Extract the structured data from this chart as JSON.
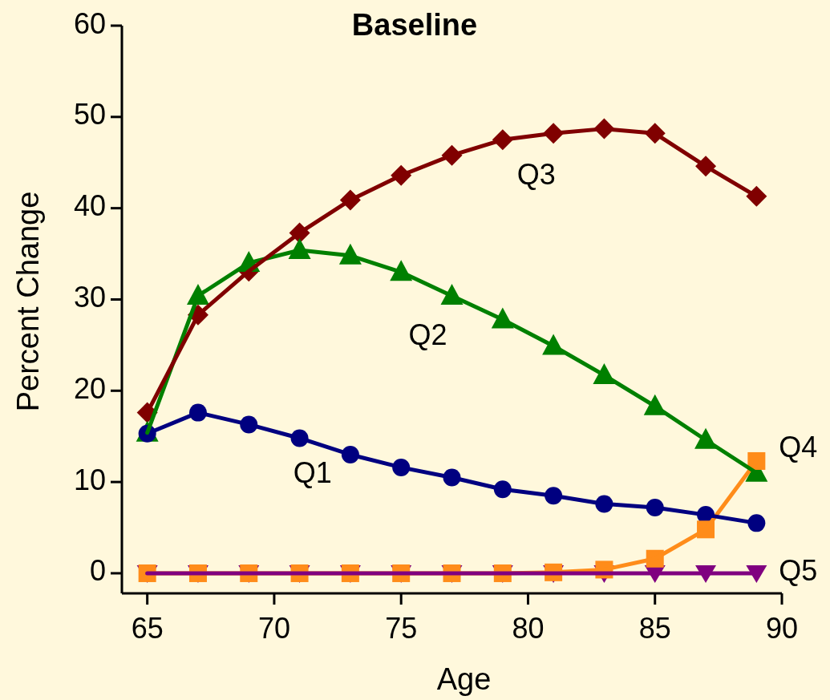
{
  "chart_data": {
    "type": "line",
    "title": "Baseline",
    "xlabel": "Age",
    "ylabel": "Percent Change",
    "x": [
      65,
      67,
      69,
      71,
      73,
      75,
      77,
      79,
      81,
      83,
      85,
      87,
      89
    ],
    "xlim": [
      64,
      90
    ],
    "xticks": [
      65,
      70,
      75,
      80,
      85,
      90
    ],
    "ylim": [
      -2.2,
      60
    ],
    "yticks": [
      0,
      10,
      20,
      30,
      40,
      50,
      60
    ],
    "grid": false,
    "legend": false,
    "series": [
      {
        "name": "Q3",
        "color": "#800000",
        "marker": "diamond",
        "values": [
          17.6,
          28.3,
          33.1,
          37.3,
          40.9,
          43.6,
          45.8,
          47.5,
          48.2,
          48.7,
          48.2,
          44.6,
          41.3
        ]
      },
      {
        "name": "Q2",
        "color": "#008000",
        "marker": "triangle",
        "values": [
          15.4,
          30.4,
          34.0,
          35.4,
          34.8,
          33.0,
          30.4,
          27.8,
          24.9,
          21.7,
          18.3,
          14.6,
          11.0
        ]
      },
      {
        "name": "Q1",
        "color": "#000080",
        "marker": "circle",
        "values": [
          15.3,
          17.6,
          16.3,
          14.8,
          13.0,
          11.6,
          10.5,
          9.2,
          8.5,
          7.6,
          7.2,
          6.4,
          5.5
        ]
      },
      {
        "name": "Q5",
        "color": "#800080",
        "marker": "triangle-down",
        "values": [
          0,
          0,
          0,
          0,
          0,
          0,
          0,
          0,
          0,
          0,
          0,
          0,
          0
        ]
      },
      {
        "name": "Q4",
        "color": "#ff8c1a",
        "marker": "square",
        "values": [
          0,
          0,
          0,
          0,
          0,
          0,
          0,
          0,
          0.1,
          0.4,
          1.6,
          4.8,
          12.3
        ]
      }
    ]
  }
}
